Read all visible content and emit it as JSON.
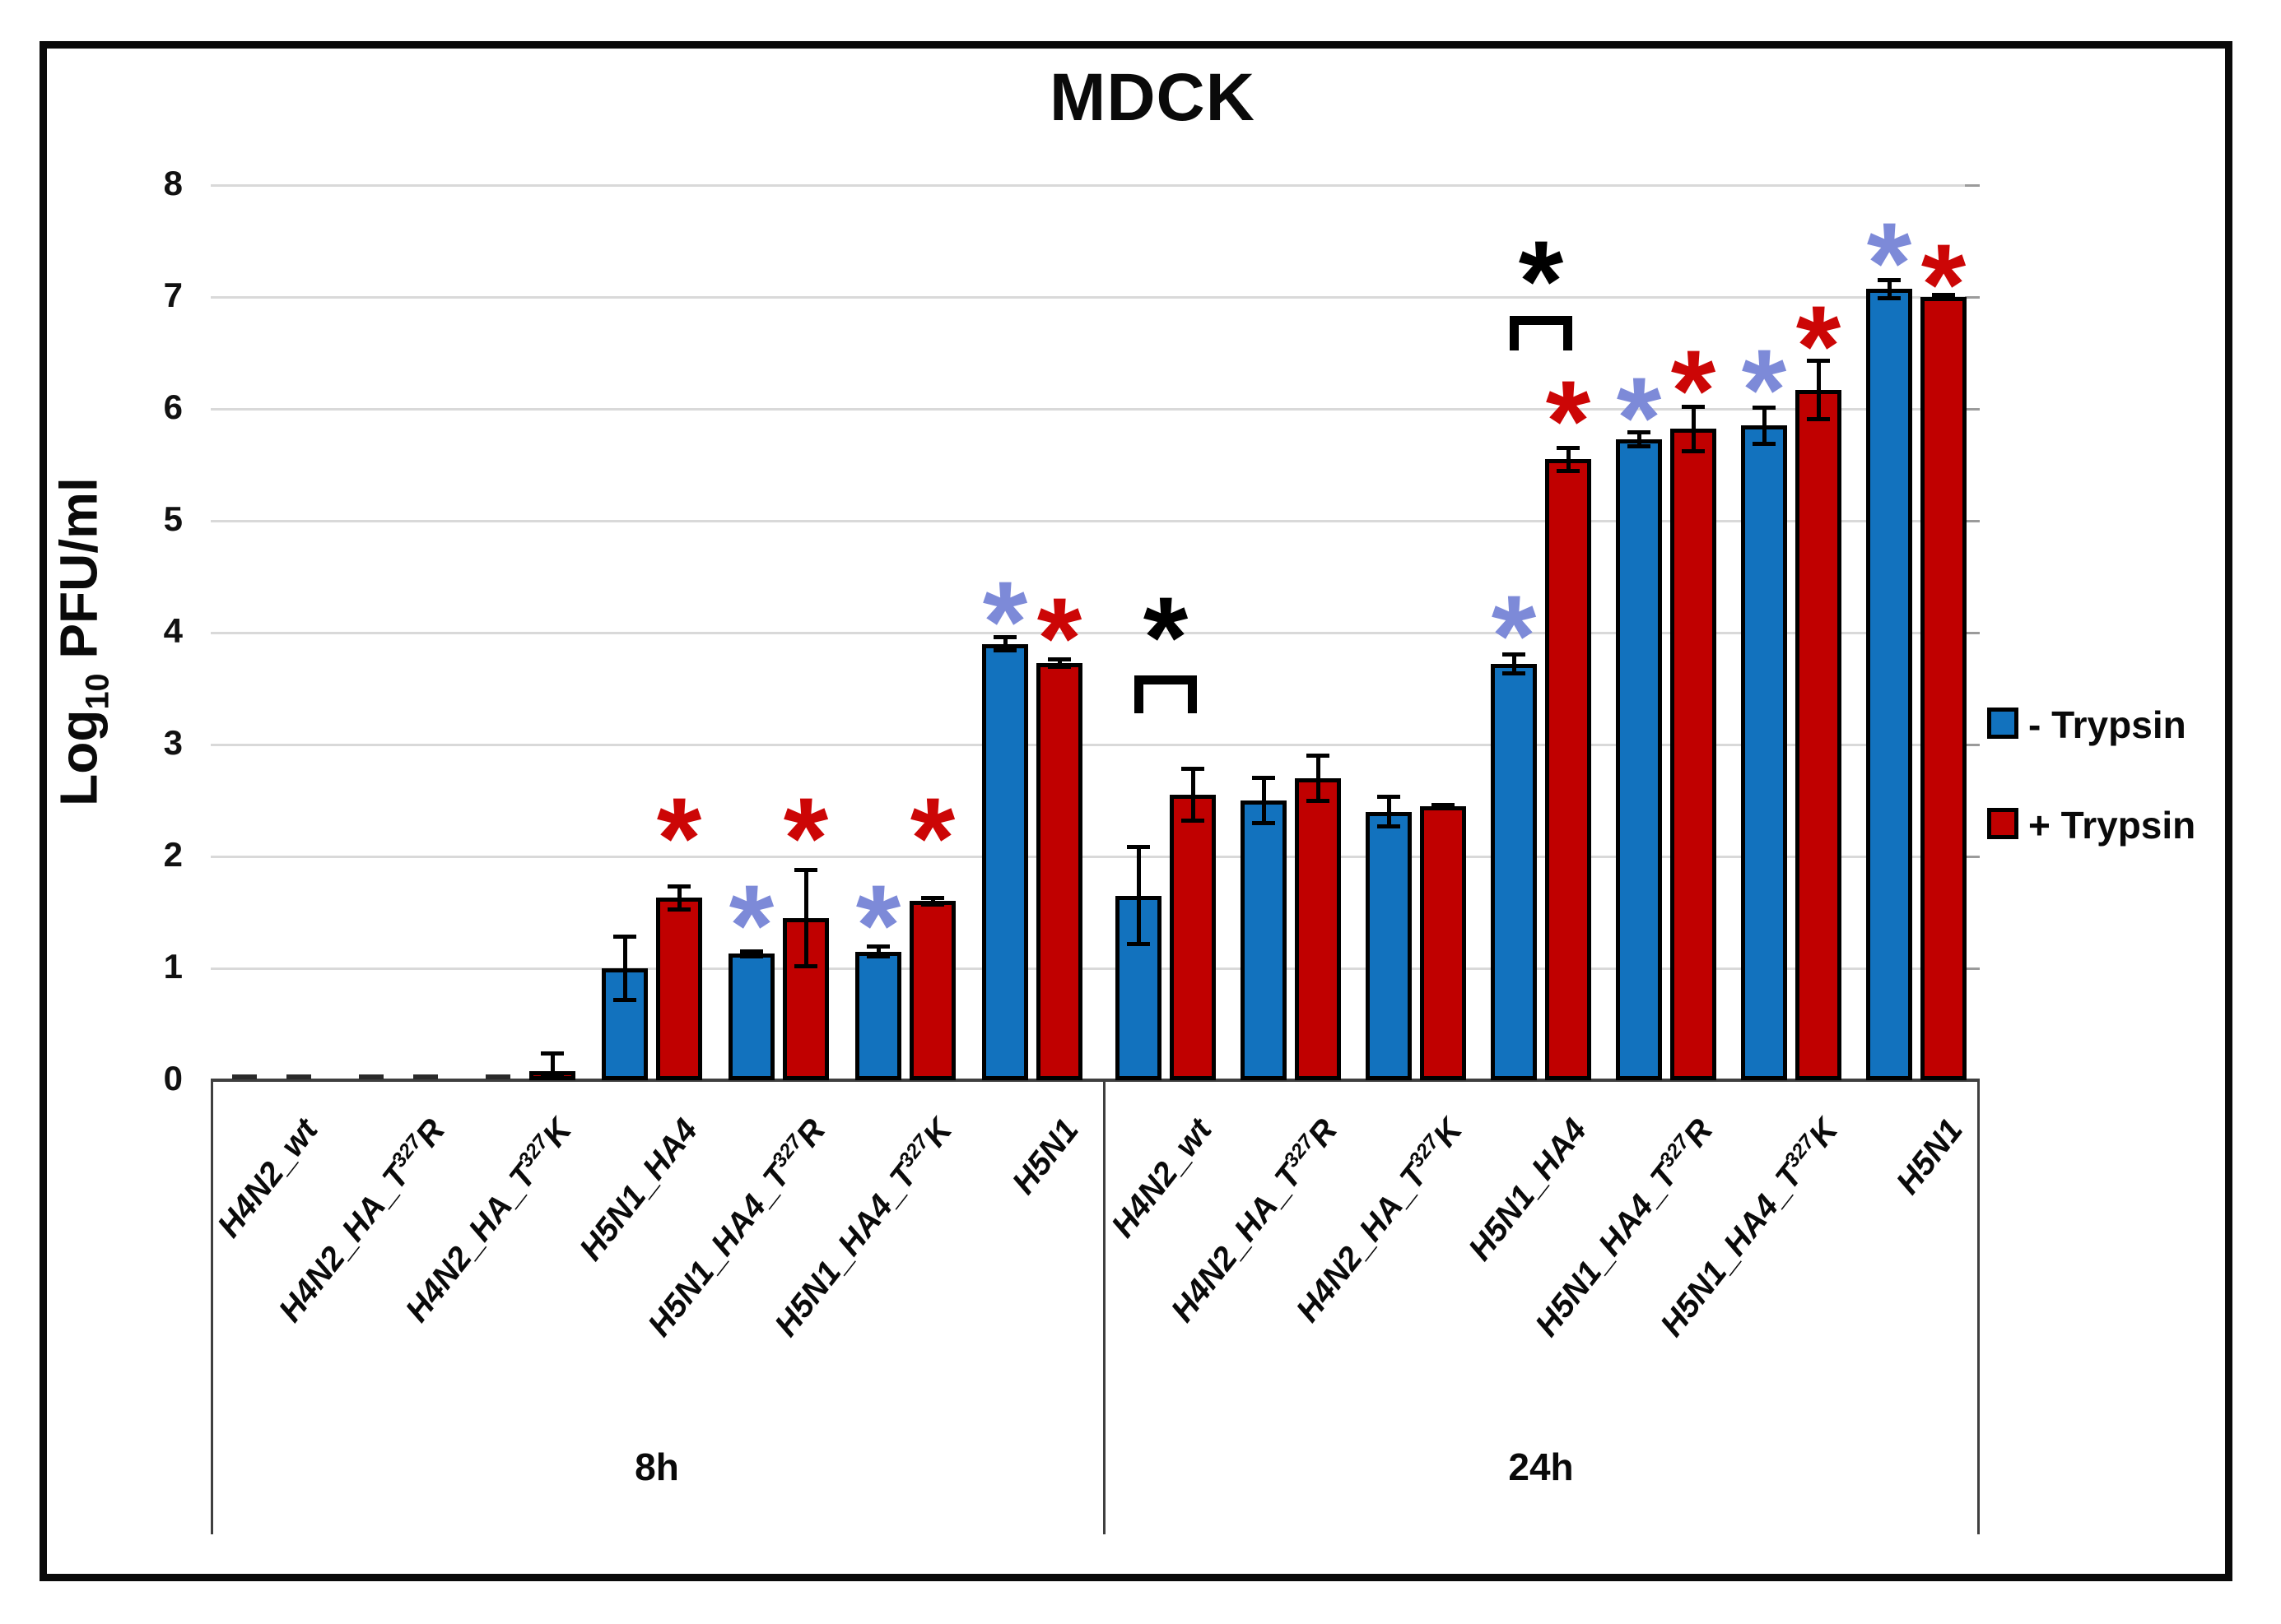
{
  "title": "MDCK",
  "y_axis": {
    "label": "Log10 PFU/ml",
    "label_pre": "Log",
    "label_sub": "10",
    "label_post": " PFU/ml",
    "ticks": [
      0,
      1,
      2,
      3,
      4,
      5,
      6,
      7,
      8
    ]
  },
  "legend": {
    "items": [
      {
        "label": "- Trypsin",
        "color": "#1272be"
      },
      {
        "label": "+ Trypsin",
        "color": "#c00000"
      }
    ]
  },
  "colors": {
    "bar_blue": "#1272be",
    "bar_red": "#c00000",
    "star_blue": "#7d8ad8",
    "star_red": "#cc0606",
    "star_black": "#000000",
    "gridline": "#d9d9d9",
    "axis": "#3f3f3f"
  },
  "chart_data": {
    "type": "bar",
    "title": "MDCK",
    "ylabel": "Log10 PFU/ml",
    "ylim": [
      0,
      8
    ],
    "grid": true,
    "legend_position": "right",
    "groups": [
      {
        "label": "8h",
        "categories": [
          {
            "pre": "H4N2_wt",
            "sup": "",
            "post": ""
          },
          {
            "pre": "H4N2_HA_T",
            "sup": "327",
            "post": "R"
          },
          {
            "pre": "H4N2_HA_T",
            "sup": "327",
            "post": "K"
          },
          {
            "pre": "H5N1_HA4",
            "sup": "",
            "post": ""
          },
          {
            "pre": "H5N1_HA4_T",
            "sup": "327",
            "post": "R"
          },
          {
            "pre": "H5N1_HA4_T",
            "sup": "327",
            "post": "K"
          },
          {
            "pre": "H5N1",
            "sup": "",
            "post": ""
          }
        ],
        "series": [
          {
            "name": "- Trypsin",
            "values": [
              0.02,
              0.02,
              0.02,
              1.0,
              1.13,
              1.15,
              3.9
            ],
            "errors": [
              0,
              0,
              0,
              0.3,
              0.04,
              0.06,
              0.08
            ]
          },
          {
            "name": "+ Trypsin",
            "values": [
              0.02,
              0.02,
              0.08,
              1.63,
              1.45,
              1.6,
              3.73
            ],
            "errors": [
              0,
              0,
              0.18,
              0.12,
              0.45,
              0.05,
              0.05
            ]
          }
        ],
        "stars": [
          {
            "cat": 3,
            "series": 1,
            "color": "red",
            "y": 2.35
          },
          {
            "cat": 4,
            "series": 0,
            "color": "blue",
            "y": 1.57
          },
          {
            "cat": 4,
            "series": 1,
            "color": "red",
            "y": 2.35
          },
          {
            "cat": 5,
            "series": 0,
            "color": "blue",
            "y": 1.57
          },
          {
            "cat": 5,
            "series": 1,
            "color": "red",
            "y": 2.35
          },
          {
            "cat": 6,
            "series": 0,
            "color": "blue",
            "y": 4.29
          },
          {
            "cat": 6,
            "series": 1,
            "color": "red",
            "y": 4.14
          }
        ],
        "brackets": []
      },
      {
        "label": "24h",
        "categories": [
          {
            "pre": "H4N2_wt",
            "sup": "",
            "post": ""
          },
          {
            "pre": "H4N2_HA_T",
            "sup": "327",
            "post": "R"
          },
          {
            "pre": "H4N2_HA_T",
            "sup": "327",
            "post": "K"
          },
          {
            "pre": "H5N1_HA4",
            "sup": "",
            "post": ""
          },
          {
            "pre": "H5N1_HA4_T",
            "sup": "327",
            "post": "R"
          },
          {
            "pre": "H5N1_HA4_T",
            "sup": "327",
            "post": "K"
          },
          {
            "pre": "H5N1",
            "sup": "",
            "post": ""
          }
        ],
        "series": [
          {
            "name": "- Trypsin",
            "values": [
              1.65,
              2.5,
              2.4,
              3.72,
              5.73,
              5.85,
              7.07
            ],
            "errors": [
              0.45,
              0.22,
              0.15,
              0.1,
              0.08,
              0.18,
              0.1
            ]
          },
          {
            "name": "+ Trypsin",
            "values": [
              2.55,
              2.7,
              2.45,
              5.55,
              5.82,
              6.17,
              7.0
            ],
            "errors": [
              0.25,
              0.22,
              0.03,
              0.12,
              0.22,
              0.28,
              0.04
            ]
          }
        ],
        "stars": [
          {
            "cat": 0,
            "series": null,
            "color": "black",
            "y": 4.15
          },
          {
            "cat": 3,
            "series": 0,
            "color": "blue",
            "y": 4.16
          },
          {
            "cat": 3,
            "series": 1,
            "color": "red",
            "y": 6.08
          },
          {
            "cat": 3,
            "series": null,
            "color": "black",
            "y": 7.33
          },
          {
            "cat": 4,
            "series": 0,
            "color": "blue",
            "y": 6.11
          },
          {
            "cat": 4,
            "series": 1,
            "color": "red",
            "y": 6.35
          },
          {
            "cat": 5,
            "series": 0,
            "color": "blue",
            "y": 6.36
          },
          {
            "cat": 5,
            "series": 1,
            "color": "red",
            "y": 6.75
          },
          {
            "cat": 6,
            "series": 0,
            "color": "blue",
            "y": 7.49
          },
          {
            "cat": 6,
            "series": 1,
            "color": "red",
            "y": 7.3
          }
        ],
        "brackets": [
          {
            "cat": 0,
            "top": 3.62,
            "bottom": 3.28
          },
          {
            "cat": 3,
            "top": 6.83,
            "bottom": 6.52
          }
        ]
      }
    ]
  }
}
